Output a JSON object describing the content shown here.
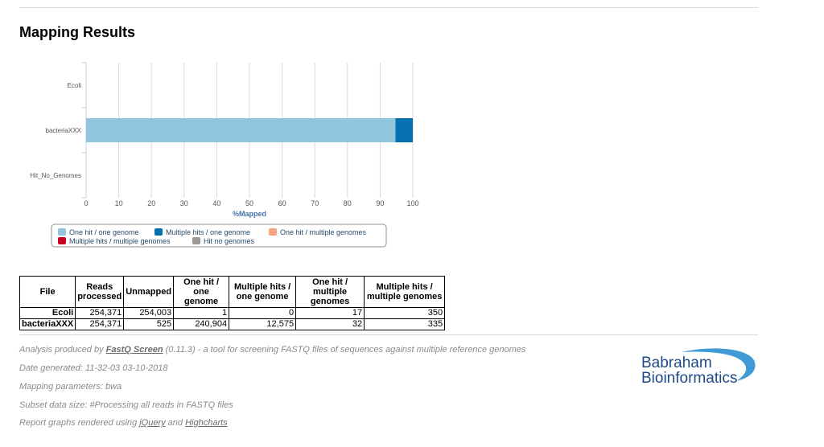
{
  "title": "Mapping Results",
  "chart_data": {
    "type": "bar",
    "orientation": "horizontal",
    "stacking": "percent",
    "categories": [
      "Ecoli",
      "bacteriaXXX",
      "Hit_No_Genomes"
    ],
    "series": [
      {
        "name": "One hit / one genome",
        "color": "#92c5de",
        "values": [
          0,
          94.7,
          0
        ]
      },
      {
        "name": "Multiple hits / one genome",
        "color": "#0571b0",
        "values": [
          0,
          5.3,
          0
        ]
      },
      {
        "name": "One hit / multiple genomes",
        "color": "#f4a582",
        "values": [
          0,
          0,
          0
        ]
      },
      {
        "name": "Multiple hits / multiple genomes",
        "color": "#ca0020",
        "values": [
          0,
          0,
          0
        ]
      },
      {
        "name": "Hit no genomes",
        "color": "#999999",
        "values": [
          0,
          0,
          0
        ]
      }
    ],
    "xlabel": "%Mapped",
    "xlim": [
      0,
      100
    ],
    "xticks": [
      "0",
      "10",
      "20",
      "30",
      "40",
      "50",
      "60",
      "70",
      "80",
      "90",
      "100"
    ],
    "legend_position": "bottom-center",
    "gridlines": true
  },
  "table": {
    "headers": [
      "File",
      "Reads processed",
      "Unmapped",
      "One hit / one genome",
      "Multiple hits / one genome",
      "One hit / multiple genomes",
      "Multiple hits / multiple genomes"
    ],
    "rows": [
      [
        "Ecoli",
        "254,371",
        "254,003",
        "1",
        "0",
        "17",
        "350"
      ],
      [
        "bacteriaXXX",
        "254,371",
        "525",
        "240,904",
        "12,575",
        "32",
        "335"
      ]
    ]
  },
  "footer": {
    "analysis_prefix": "Analysis produced by ",
    "analysis_link": "FastQ Screen",
    "analysis_suffix": " (0.11.3) - a tool for screening FASTQ files of sequences against multiple reference genomes",
    "date": "Date generated: 11-32-03 03-10-2018",
    "mapping": "Mapping parameters: bwa",
    "subset": "Subset data size: #Processing all reads in FASTQ files",
    "graphs_prefix": "Report graphs rendered using ",
    "graphs_link1": "jQuery",
    "graphs_and": " and ",
    "graphs_link2": "Highcharts"
  },
  "logo": {
    "line1": "Babraham",
    "line2": "Bioinformatics"
  }
}
